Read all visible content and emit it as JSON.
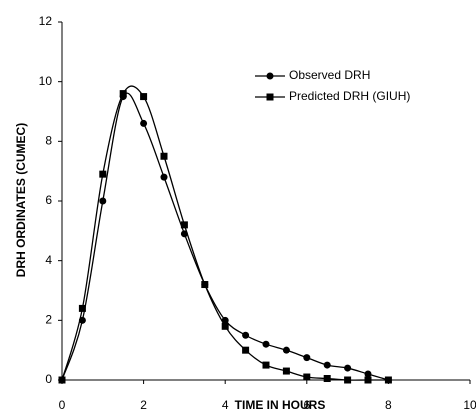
{
  "chart_data": {
    "type": "line",
    "x_label": "TIME IN HOURS",
    "y_label": "DRH ORDINATES (CUMEC)",
    "x": [
      0,
      0.5,
      1,
      1.5,
      2,
      2.5,
      3,
      3.5,
      4,
      4.5,
      5,
      5.5,
      6,
      6.5,
      7,
      7.5,
      8
    ],
    "series": [
      {
        "name": "Observed DRH",
        "color": "#000000",
        "marker": "circle",
        "values": [
          0,
          2.0,
          6.0,
          9.5,
          8.6,
          6.8,
          4.9,
          3.2,
          2.0,
          1.5,
          1.2,
          1.0,
          0.75,
          0.5,
          0.4,
          0.2,
          0
        ]
      },
      {
        "name": "Predicted DRH (GIUH)",
        "color": "#000000",
        "marker": "square",
        "values": [
          0,
          2.4,
          6.9,
          9.6,
          9.5,
          7.5,
          5.2,
          3.2,
          1.8,
          1.0,
          0.5,
          0.3,
          0.1,
          0.05,
          0,
          0,
          0
        ]
      }
    ],
    "xlim": [
      0,
      10
    ],
    "xticks": [
      0,
      2,
      4,
      6,
      8,
      10
    ],
    "ylim": [
      0,
      12
    ],
    "yticks": [
      0,
      2,
      4,
      6,
      8,
      10,
      12
    ],
    "grid": false,
    "legend": "upper right",
    "smooth": true
  }
}
